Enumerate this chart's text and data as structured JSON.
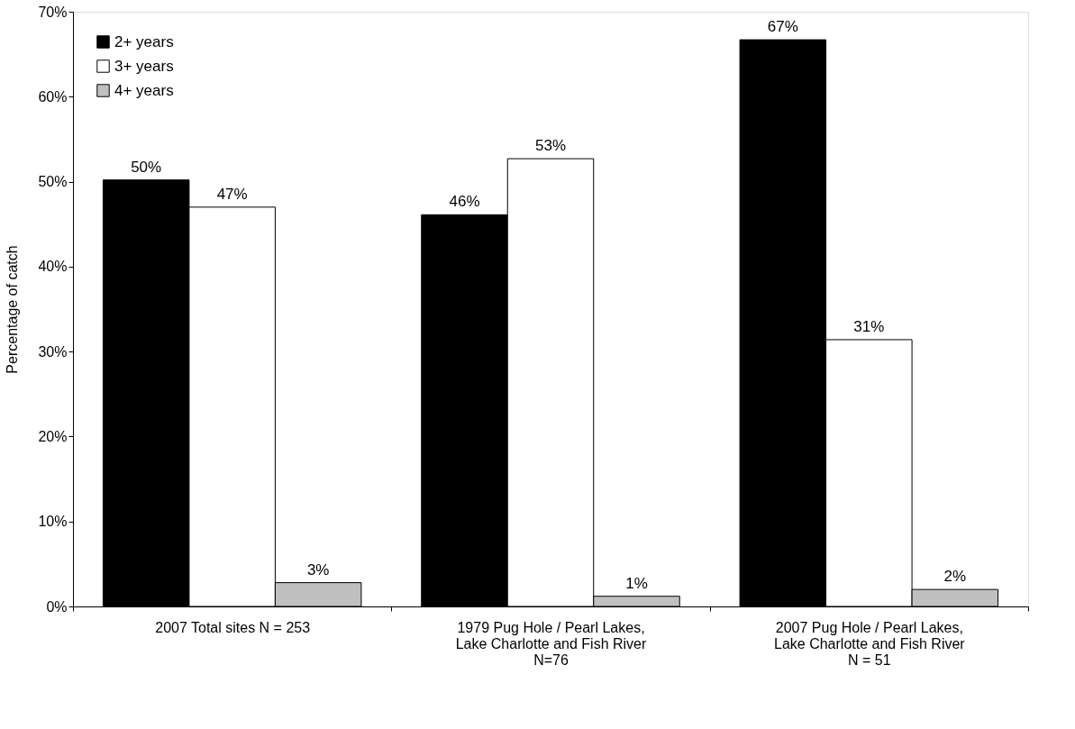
{
  "chart_data": {
    "type": "bar",
    "ylabel": "Percentage of catch",
    "categories": [
      "2007 Total sites N = 253",
      "1979  Pug Hole / Pearl Lakes,\nLake Charlotte and Fish River\nN=76",
      "2007 Pug Hole / Pearl Lakes,\nLake Charlotte and Fish River\nN = 51"
    ],
    "series": [
      {
        "name": "2+ years",
        "color": "#000000",
        "values": [
          50.2,
          46.1,
          66.7
        ],
        "value_labels": [
          "50%",
          "46%",
          "67%"
        ]
      },
      {
        "name": "3+ years",
        "color": "#ffffff",
        "values": [
          47.0,
          52.7,
          31.4
        ],
        "value_labels": [
          "47%",
          "53%",
          "31%"
        ]
      },
      {
        "name": "4+ years",
        "color": "#c0c0c0",
        "values": [
          2.8,
          1.2,
          2.0
        ],
        "value_labels": [
          "3%",
          "1%",
          "2%"
        ]
      }
    ],
    "ylim": [
      0,
      70
    ],
    "yticks": [
      {
        "value": 0,
        "label": "0%"
      },
      {
        "value": 10,
        "label": "10%"
      },
      {
        "value": 20,
        "label": "20%"
      },
      {
        "value": 30,
        "label": "30%"
      },
      {
        "value": 40,
        "label": "40%"
      },
      {
        "value": 50,
        "label": "50%"
      },
      {
        "value": 60,
        "label": "60%"
      },
      {
        "value": 70,
        "label": "70%"
      }
    ],
    "grid": false,
    "legend": "top left"
  }
}
